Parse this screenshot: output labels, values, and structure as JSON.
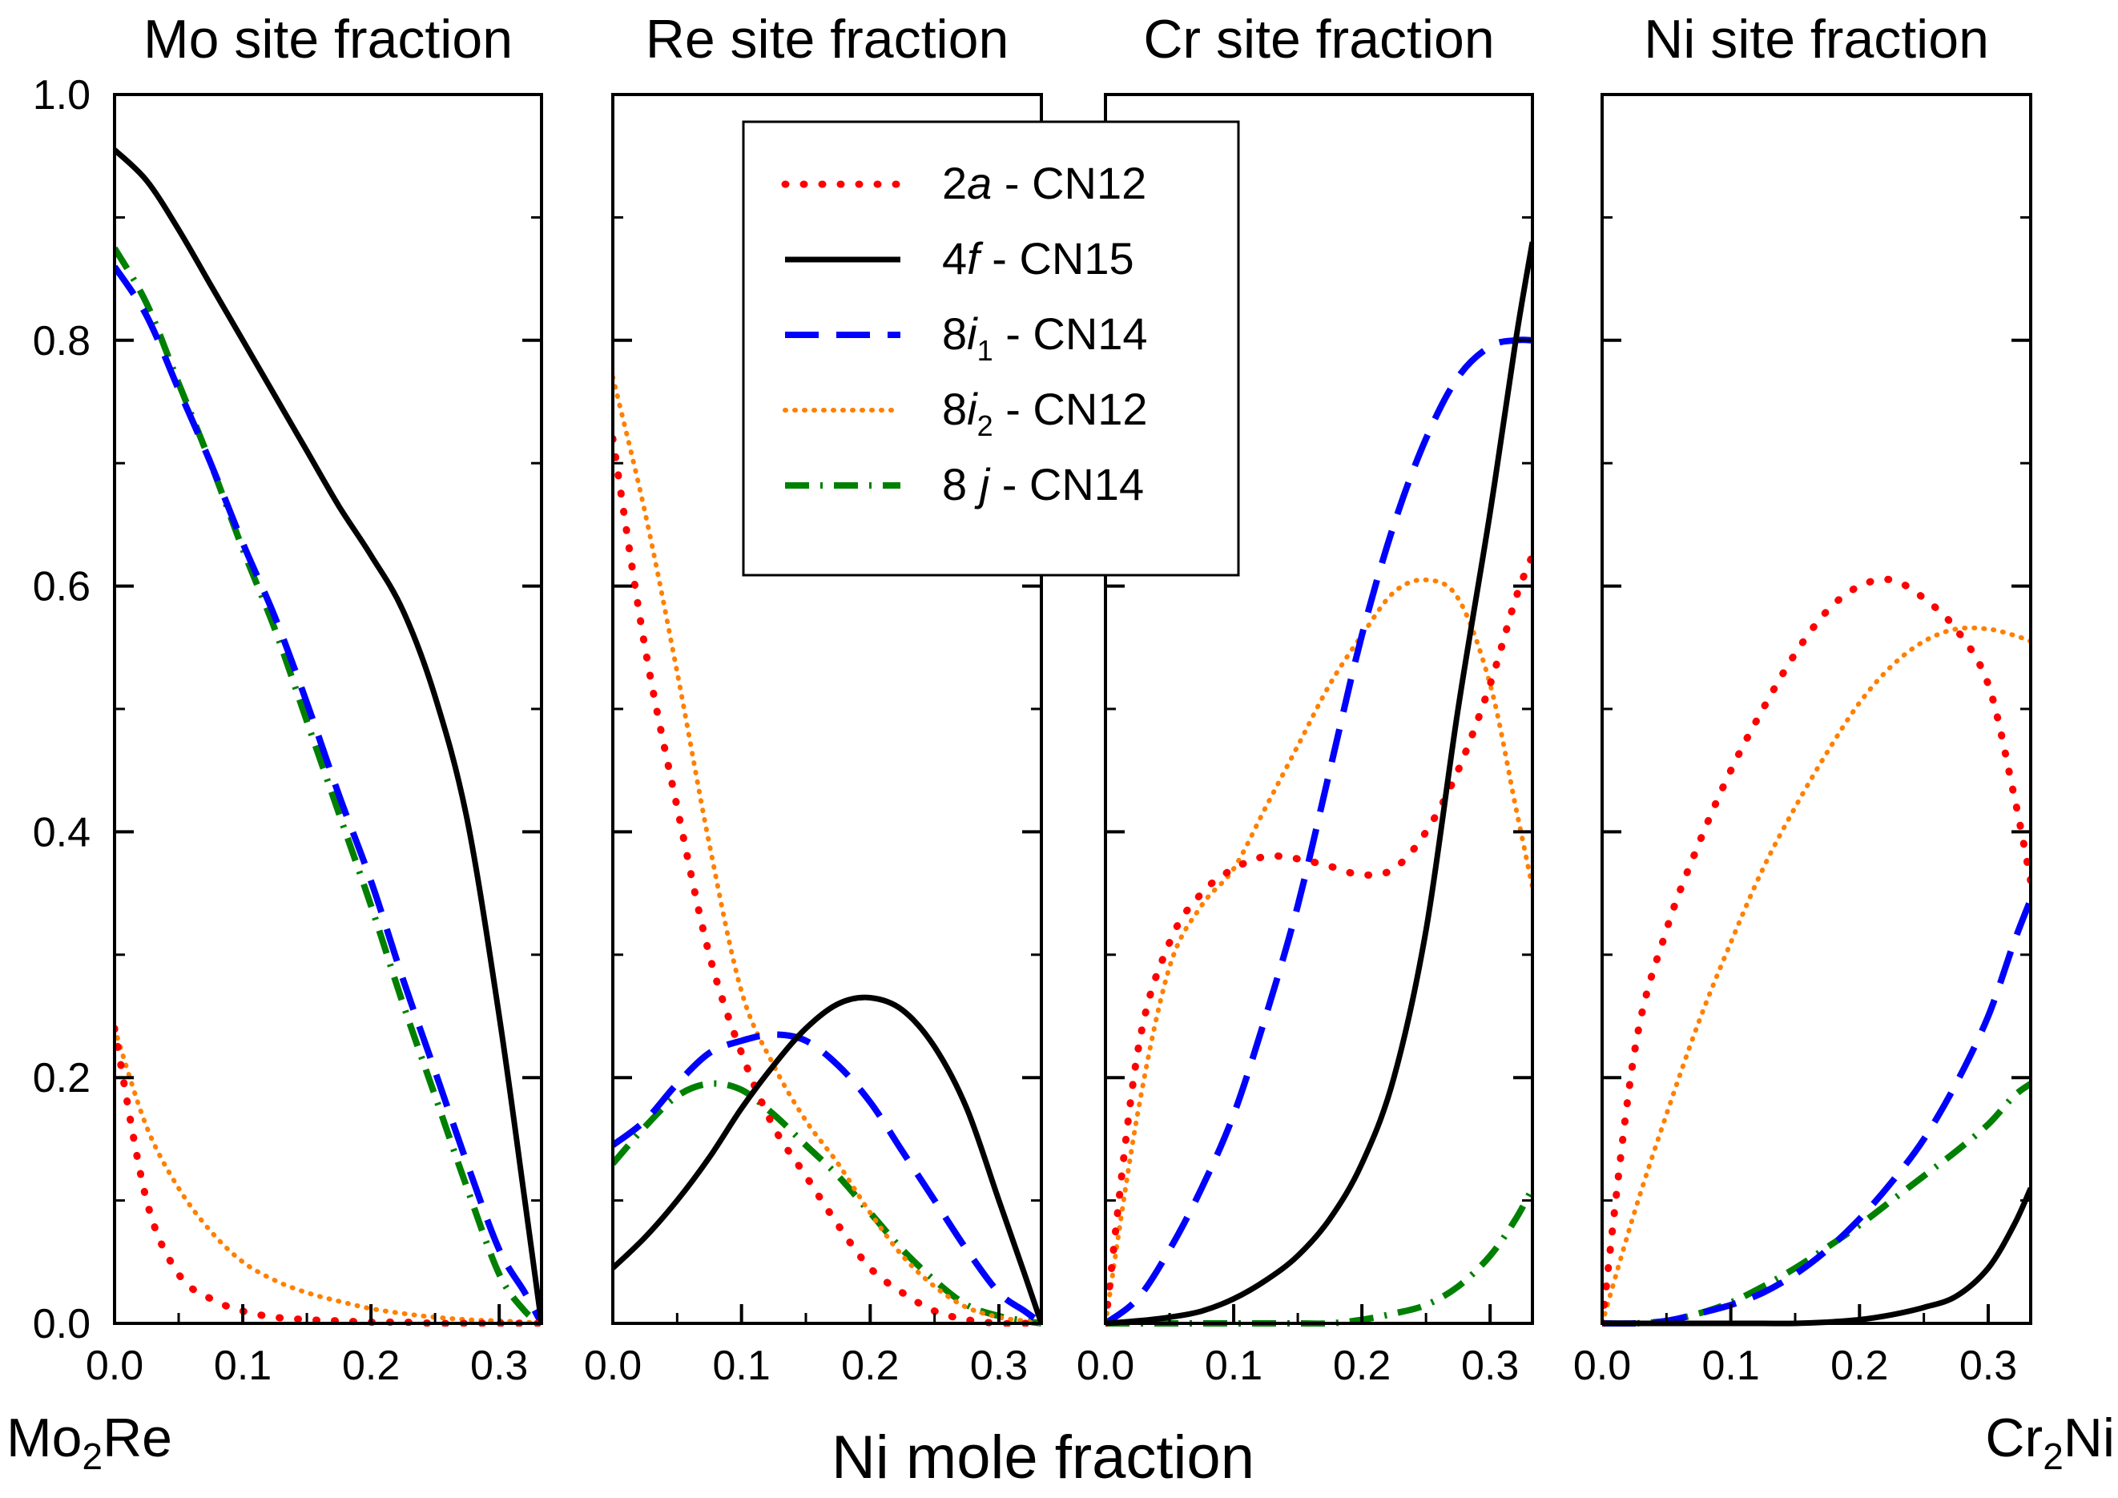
{
  "chart_data": {
    "type": "line",
    "xlabel": "Ni mole fraction",
    "end_labels": {
      "left": [
        "Mo",
        "2",
        "Re"
      ],
      "right": [
        "Cr",
        "2",
        "Ni"
      ]
    },
    "ylim": [
      0,
      1.0
    ],
    "yticks": [
      "0.0",
      "0.2",
      "0.4",
      "0.6",
      "0.8",
      "1.0"
    ],
    "xlim": [
      0,
      0.333
    ],
    "xticks": [
      "0.0",
      "0.1",
      "0.2",
      "0.3"
    ],
    "grid": false,
    "legend_placement": "top, spanning Re and Cr panels",
    "legend": [
      {
        "key": "2a",
        "pre": "2",
        "it": "a",
        "sub": "",
        "post": " - CN12",
        "color": "#ff0000",
        "dash": "dot"
      },
      {
        "key": "4f",
        "pre": "4",
        "it": "f",
        "sub": "",
        "post": " - CN15",
        "color": "#000000",
        "dash": "solid"
      },
      {
        "key": "8i1",
        "pre": "8",
        "it": "i",
        "sub": "1",
        "post": " - CN14",
        "color": "#0000ff",
        "dash": "dash"
      },
      {
        "key": "8i2",
        "pre": "8",
        "it": "i",
        "sub": "2",
        "post": " - CN12",
        "color": "#ff8000",
        "dash": "shortdot"
      },
      {
        "key": "8j",
        "pre": "8 ",
        "it": "j",
        "sub": "",
        "post": " - CN14",
        "color": "#008000",
        "dash": "dashdot"
      }
    ],
    "x": [
      0,
      0.025,
      0.05,
      0.075,
      0.1,
      0.125,
      0.15,
      0.175,
      0.2,
      0.225,
      0.25,
      0.275,
      0.3,
      0.32,
      0.333
    ],
    "panels": [
      {
        "title": "Mo site fraction",
        "series": [
          {
            "key": "2a",
            "values": [
              0.24,
              0.1,
              0.04,
              0.02,
              0.01,
              0.005,
              0.003,
              0.002,
              0.001,
              0.001,
              0.0,
              0.0,
              0.0,
              0.0,
              0.0
            ]
          },
          {
            "key": "4f",
            "values": [
              0.955,
              0.93,
              0.89,
              0.845,
              0.8,
              0.755,
              0.71,
              0.665,
              0.625,
              0.58,
              0.51,
              0.41,
              0.25,
              0.1,
              0.0
            ]
          },
          {
            "key": "8i1",
            "values": [
              0.86,
              0.82,
              0.76,
              0.7,
              0.635,
              0.575,
              0.505,
              0.43,
              0.36,
              0.28,
              0.205,
              0.13,
              0.06,
              0.025,
              0.0
            ]
          },
          {
            "key": "8i2",
            "values": [
              0.24,
              0.16,
              0.11,
              0.075,
              0.05,
              0.035,
              0.025,
              0.018,
              0.012,
              0.008,
              0.005,
              0.003,
              0.002,
              0.001,
              0.0
            ]
          },
          {
            "key": "8j",
            "values": [
              0.875,
              0.83,
              0.765,
              0.7,
              0.63,
              0.565,
              0.49,
              0.415,
              0.34,
              0.26,
              0.185,
              0.11,
              0.04,
              0.01,
              0.0
            ]
          }
        ]
      },
      {
        "title": "Re site fraction",
        "series": [
          {
            "key": "2a",
            "values": [
              0.72,
              0.55,
              0.42,
              0.3,
              0.22,
              0.16,
              0.12,
              0.08,
              0.045,
              0.025,
              0.01,
              0.003,
              0.0,
              0.0,
              0.0
            ]
          },
          {
            "key": "4f",
            "values": [
              0.045,
              0.07,
              0.1,
              0.135,
              0.175,
              0.21,
              0.24,
              0.26,
              0.265,
              0.255,
              0.225,
              0.175,
              0.1,
              0.04,
              0.0
            ]
          },
          {
            "key": "8i1",
            "values": [
              0.145,
              0.165,
              0.195,
              0.22,
              0.23,
              0.235,
              0.23,
              0.21,
              0.18,
              0.14,
              0.1,
              0.06,
              0.025,
              0.01,
              0.0
            ]
          },
          {
            "key": "8i2",
            "values": [
              0.77,
              0.66,
              0.53,
              0.39,
              0.27,
              0.21,
              0.165,
              0.13,
              0.09,
              0.055,
              0.03,
              0.013,
              0.005,
              0.002,
              0.0
            ]
          },
          {
            "key": "8j",
            "values": [
              0.13,
              0.16,
              0.185,
              0.195,
              0.19,
              0.17,
              0.145,
              0.12,
              0.09,
              0.06,
              0.035,
              0.015,
              0.006,
              0.002,
              0.0
            ]
          }
        ]
      },
      {
        "title": "Cr site fraction",
        "series": [
          {
            "key": "2a",
            "values": [
              0.0,
              0.22,
              0.31,
              0.35,
              0.37,
              0.38,
              0.378,
              0.372,
              0.365,
              0.37,
              0.4,
              0.45,
              0.52,
              0.59,
              0.625
            ]
          },
          {
            "key": "4f",
            "values": [
              0.0,
              0.002,
              0.005,
              0.01,
              0.02,
              0.035,
              0.055,
              0.085,
              0.13,
              0.2,
              0.32,
              0.5,
              0.66,
              0.8,
              0.88
            ]
          },
          {
            "key": "8i1",
            "values": [
              0.0,
              0.02,
              0.06,
              0.11,
              0.17,
              0.25,
              0.34,
              0.45,
              0.56,
              0.65,
              0.72,
              0.77,
              0.795,
              0.8,
              0.8
            ]
          },
          {
            "key": "8i2",
            "values": [
              0.0,
              0.17,
              0.29,
              0.34,
              0.37,
              0.42,
              0.47,
              0.52,
              0.56,
              0.595,
              0.605,
              0.59,
              0.52,
              0.42,
              0.355
            ]
          },
          {
            "key": "8j",
            "values": [
              0.0,
              0.0,
              0.0,
              0.0,
              0.0,
              0.0,
              0.0,
              0.0,
              0.003,
              0.008,
              0.015,
              0.03,
              0.055,
              0.085,
              0.11
            ]
          }
        ]
      },
      {
        "title": "Ni site fraction",
        "series": [
          {
            "key": "2a",
            "values": [
              0.0,
              0.22,
              0.32,
              0.39,
              0.45,
              0.5,
              0.545,
              0.58,
              0.6,
              0.605,
              0.59,
              0.565,
              0.52,
              0.43,
              0.36
            ]
          },
          {
            "key": "4f",
            "values": [
              0.0,
              0.0,
              0.0,
              0.0,
              0.0,
              0.0,
              0.0,
              0.001,
              0.003,
              0.007,
              0.013,
              0.022,
              0.045,
              0.08,
              0.11
            ]
          },
          {
            "key": "8i1",
            "values": [
              0.0,
              0.0,
              0.002,
              0.008,
              0.015,
              0.025,
              0.04,
              0.06,
              0.085,
              0.115,
              0.15,
              0.195,
              0.25,
              0.31,
              0.345
            ]
          },
          {
            "key": "8i2",
            "values": [
              0.0,
              0.09,
              0.17,
              0.245,
              0.31,
              0.37,
              0.42,
              0.465,
              0.505,
              0.535,
              0.555,
              0.565,
              0.565,
              0.56,
              0.555
            ]
          },
          {
            "key": "8j",
            "values": [
              0.0,
              0.0,
              0.002,
              0.008,
              0.017,
              0.03,
              0.045,
              0.062,
              0.08,
              0.1,
              0.12,
              0.14,
              0.162,
              0.185,
              0.195
            ]
          }
        ]
      }
    ]
  }
}
